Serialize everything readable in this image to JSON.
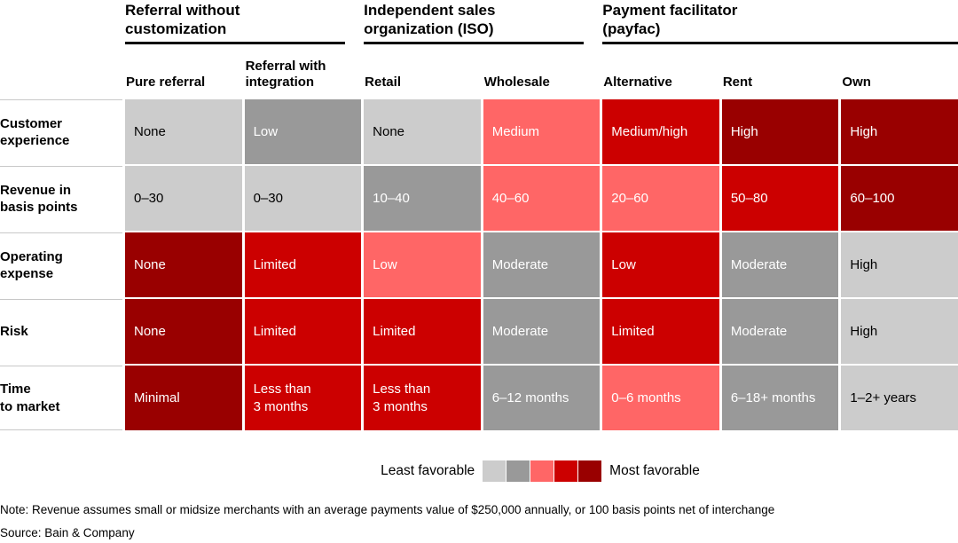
{
  "palette": {
    "levels": [
      "#cccccc",
      "#999999",
      "#ff6666",
      "#cc0000",
      "#990000"
    ],
    "text_on_light": "#000000",
    "text_on_dark": "#ffffff"
  },
  "table": {
    "groups": [
      {
        "label": "Referral without\ncustomization",
        "span": 2
      },
      {
        "label": "Independent sales\norganization (ISO)",
        "span": 2
      },
      {
        "label": "Payment facilitator\n(payfac)",
        "span": 3
      }
    ],
    "columns": [
      "Pure referral",
      "Referral with\nintegration",
      "Retail",
      "Wholesale",
      "Alternative",
      "Rent",
      "Own"
    ],
    "rows": [
      {
        "label": "Customer\nexperience",
        "cells": [
          {
            "text": "None",
            "level": 1
          },
          {
            "text": "Low",
            "level": 2
          },
          {
            "text": "None",
            "level": 1
          },
          {
            "text": "Medium",
            "level": 3
          },
          {
            "text": "Medium/high",
            "level": 4
          },
          {
            "text": "High",
            "level": 5
          },
          {
            "text": "High",
            "level": 5
          }
        ]
      },
      {
        "label": "Revenue in\nbasis points",
        "cells": [
          {
            "text": "0–30",
            "level": 1
          },
          {
            "text": "0–30",
            "level": 1
          },
          {
            "text": "10–40",
            "level": 2
          },
          {
            "text": "40–60",
            "level": 3
          },
          {
            "text": "20–60",
            "level": 3
          },
          {
            "text": "50–80",
            "level": 4
          },
          {
            "text": "60–100",
            "level": 5
          }
        ]
      },
      {
        "label": "Operating\nexpense",
        "cells": [
          {
            "text": "None",
            "level": 5
          },
          {
            "text": "Limited",
            "level": 4
          },
          {
            "text": "Low",
            "level": 3
          },
          {
            "text": "Moderate",
            "level": 2
          },
          {
            "text": "Low",
            "level": 4
          },
          {
            "text": "Moderate",
            "level": 2
          },
          {
            "text": "High",
            "level": 1
          }
        ]
      },
      {
        "label": "Risk",
        "cells": [
          {
            "text": "None",
            "level": 5
          },
          {
            "text": "Limited",
            "level": 4
          },
          {
            "text": "Limited",
            "level": 4
          },
          {
            "text": "Moderate",
            "level": 2
          },
          {
            "text": "Limited",
            "level": 4
          },
          {
            "text": "Moderate",
            "level": 2
          },
          {
            "text": "High",
            "level": 1
          }
        ]
      },
      {
        "label": "Time\nto market",
        "cells": [
          {
            "text": "Minimal",
            "level": 5
          },
          {
            "text": "Less than\n3 months",
            "level": 4
          },
          {
            "text": "Less than\n3 months",
            "level": 4
          },
          {
            "text": "6–12 months",
            "level": 2
          },
          {
            "text": "0–6 months",
            "level": 3
          },
          {
            "text": "6–18+ months",
            "level": 2
          },
          {
            "text": "1–2+ years",
            "level": 1
          }
        ]
      }
    ]
  },
  "legend": {
    "least": "Least favorable",
    "most": "Most favorable"
  },
  "note": "Note: Revenue assumes small or midsize merchants with an average payments value of $250,000 annually, or 100 basis points net of interchange",
  "source": "Source: Bain & Company",
  "chart_data": {
    "type": "heatmap",
    "title": "",
    "column_groups": [
      {
        "label": "Referral without customization",
        "columns": [
          "Pure referral",
          "Referral with integration"
        ]
      },
      {
        "label": "Independent sales organization (ISO)",
        "columns": [
          "Retail",
          "Wholesale"
        ]
      },
      {
        "label": "Payment facilitator (payfac)",
        "columns": [
          "Alternative",
          "Rent",
          "Own"
        ]
      }
    ],
    "columns": [
      "Pure referral",
      "Referral with integration",
      "Retail",
      "Wholesale",
      "Alternative",
      "Rent",
      "Own"
    ],
    "rows": [
      "Customer experience",
      "Revenue in basis points",
      "Operating expense",
      "Risk",
      "Time to market"
    ],
    "cell_text": [
      [
        "None",
        "Low",
        "None",
        "Medium",
        "Medium/high",
        "High",
        "High"
      ],
      [
        "0–30",
        "0–30",
        "10–40",
        "40–60",
        "20–60",
        "50–80",
        "60–100"
      ],
      [
        "None",
        "Limited",
        "Low",
        "Moderate",
        "Low",
        "Moderate",
        "High"
      ],
      [
        "None",
        "Limited",
        "Limited",
        "Moderate",
        "Limited",
        "Moderate",
        "High"
      ],
      [
        "Minimal",
        "Less than 3 months",
        "Less than 3 months",
        "6–12 months",
        "0–6 months",
        "6–18+ months",
        "1–2+ years"
      ]
    ],
    "cell_favorability_level_1least_5most": [
      [
        1,
        2,
        1,
        3,
        4,
        5,
        5
      ],
      [
        1,
        1,
        2,
        3,
        3,
        4,
        5
      ],
      [
        5,
        4,
        3,
        2,
        4,
        2,
        1
      ],
      [
        5,
        4,
        4,
        2,
        4,
        2,
        1
      ],
      [
        5,
        4,
        4,
        2,
        3,
        2,
        1
      ]
    ],
    "level_colors": [
      "#cccccc",
      "#999999",
      "#ff6666",
      "#cc0000",
      "#990000"
    ],
    "legend": {
      "left_label": "Least favorable",
      "right_label": "Most favorable",
      "position": "bottom-center"
    },
    "grid": false,
    "note": "Note: Revenue assumes small or midsize merchants with an average payments value of $250,000 annually, or 100 basis points net of interchange",
    "source": "Source: Bain & Company"
  }
}
